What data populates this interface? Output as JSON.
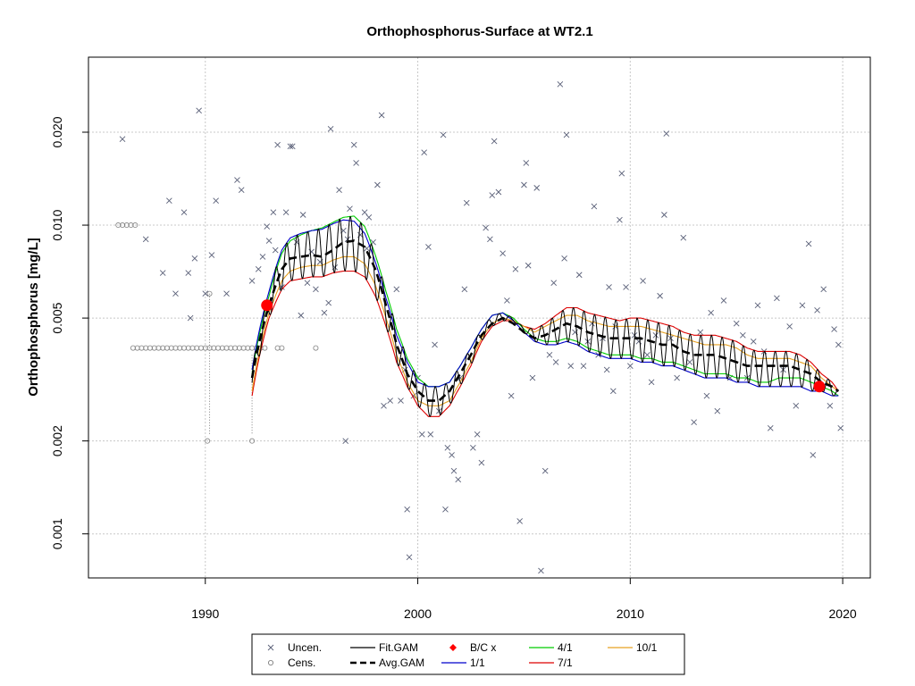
{
  "chart_data": {
    "type": "scatter",
    "title": "Orthophosphorus-Surface at WT2.1",
    "ylabel": "Orthophosphorus [mg/L]",
    "xlabel": "",
    "y_scale": "log",
    "xlim": [
      1984.5,
      2021.3
    ],
    "ylim": [
      0.00072,
      0.035
    ],
    "grid": true,
    "x_ticks": [
      "1990",
      "2000",
      "2010",
      "2020"
    ],
    "y_ticks": [
      "0.001",
      "0.002",
      "0.005",
      "0.010",
      "0.020"
    ],
    "legend": {
      "position": "bottom",
      "items": [
        {
          "label": "Uncen.",
          "kind": "x",
          "color": "#5a6078"
        },
        {
          "label": "Cens.",
          "kind": "o",
          "color": "#707070"
        },
        {
          "label": "Fit.GAM",
          "kind": "line",
          "color": "#000000"
        },
        {
          "label": "Avg.GAM",
          "kind": "dash",
          "color": "#000000"
        },
        {
          "label": "B/C x",
          "kind": "diamond",
          "color": "#ff0000"
        },
        {
          "label": "1/1",
          "kind": "line",
          "color": "#0000cc"
        },
        {
          "label": "4/1",
          "kind": "line",
          "color": "#00cc00"
        },
        {
          "label": "7/1",
          "kind": "line",
          "color": "#dd0000"
        },
        {
          "label": "10/1",
          "kind": "line",
          "color": "#e6a020"
        }
      ]
    },
    "uncensored": [
      [
        1986.1,
        0.019
      ],
      [
        1987.2,
        0.009
      ],
      [
        1988.0,
        0.007
      ],
      [
        1988.3,
        0.012
      ],
      [
        1988.6,
        0.006
      ],
      [
        1989.0,
        0.011
      ],
      [
        1989.2,
        0.007
      ],
      [
        1989.3,
        0.005
      ],
      [
        1989.5,
        0.0078
      ],
      [
        1989.7,
        0.0235
      ],
      [
        1990.0,
        0.006
      ],
      [
        1990.3,
        0.008
      ],
      [
        1990.5,
        0.012
      ],
      [
        1991.0,
        0.006
      ],
      [
        1991.5,
        0.014
      ],
      [
        1991.7,
        0.013
      ],
      [
        1992.2,
        0.0066
      ],
      [
        1992.5,
        0.0072
      ],
      [
        1992.7,
        0.0079
      ],
      [
        1992.9,
        0.0099
      ],
      [
        1993.0,
        0.0089
      ],
      [
        1993.2,
        0.011
      ],
      [
        1993.3,
        0.0083
      ],
      [
        1993.4,
        0.0182
      ],
      [
        1993.6,
        0.0063
      ],
      [
        1993.8,
        0.011
      ],
      [
        1994.0,
        0.018
      ],
      [
        1994.1,
        0.018
      ],
      [
        1994.3,
        0.0088
      ],
      [
        1994.5,
        0.0051
      ],
      [
        1994.6,
        0.0108
      ],
      [
        1994.8,
        0.0065
      ],
      [
        1995.0,
        0.0082
      ],
      [
        1995.2,
        0.0062
      ],
      [
        1995.4,
        0.0076
      ],
      [
        1995.6,
        0.0052
      ],
      [
        1995.8,
        0.0056
      ],
      [
        1995.9,
        0.0205
      ],
      [
        1996.1,
        0.0073
      ],
      [
        1996.3,
        0.013
      ],
      [
        1996.5,
        0.0096
      ],
      [
        1996.6,
        0.002
      ],
      [
        1996.7,
        0.009
      ],
      [
        1996.8,
        0.0113
      ],
      [
        1997.0,
        0.0182
      ],
      [
        1997.1,
        0.0159
      ],
      [
        1997.3,
        0.0093
      ],
      [
        1997.5,
        0.011
      ],
      [
        1997.6,
        0.0084
      ],
      [
        1997.7,
        0.0106
      ],
      [
        1997.9,
        0.0088
      ],
      [
        1998.1,
        0.0135
      ],
      [
        1998.3,
        0.0227
      ],
      [
        1998.4,
        0.0026
      ],
      [
        1998.7,
        0.0027
      ],
      [
        1999.0,
        0.0062
      ],
      [
        1999.2,
        0.0027
      ],
      [
        1999.4,
        0.0034
      ],
      [
        1999.5,
        0.0012
      ],
      [
        1999.6,
        0.00084
      ],
      [
        1999.8,
        0.0028
      ],
      [
        2000.0,
        0.0032
      ],
      [
        2000.2,
        0.0021
      ],
      [
        2000.3,
        0.0172
      ],
      [
        2000.5,
        0.0085
      ],
      [
        2000.6,
        0.0021
      ],
      [
        2000.8,
        0.0041
      ],
      [
        2001.0,
        0.0025
      ],
      [
        2001.2,
        0.0196
      ],
      [
        2001.3,
        0.0012
      ],
      [
        2001.4,
        0.0019
      ],
      [
        2001.6,
        0.0018
      ],
      [
        2001.7,
        0.0016
      ],
      [
        2001.9,
        0.0015
      ],
      [
        2002.0,
        0.0032
      ],
      [
        2002.2,
        0.0062
      ],
      [
        2002.3,
        0.0118
      ],
      [
        2002.6,
        0.0019
      ],
      [
        2002.8,
        0.0021
      ],
      [
        2003.0,
        0.0017
      ],
      [
        2003.2,
        0.0098
      ],
      [
        2003.4,
        0.009
      ],
      [
        2003.5,
        0.0125
      ],
      [
        2003.6,
        0.0187
      ],
      [
        2003.8,
        0.0128
      ],
      [
        2004.0,
        0.0081
      ],
      [
        2004.2,
        0.0057
      ],
      [
        2004.4,
        0.0028
      ],
      [
        2004.6,
        0.0072
      ],
      [
        2004.8,
        0.0011
      ],
      [
        2005.0,
        0.0135
      ],
      [
        2005.1,
        0.0159
      ],
      [
        2005.2,
        0.0074
      ],
      [
        2005.4,
        0.0032
      ],
      [
        2005.6,
        0.0132
      ],
      [
        2005.8,
        0.00076
      ],
      [
        2006.0,
        0.0016
      ],
      [
        2006.2,
        0.0038
      ],
      [
        2006.4,
        0.0065
      ],
      [
        2006.5,
        0.0036
      ],
      [
        2006.7,
        0.0286
      ],
      [
        2006.9,
        0.0078
      ],
      [
        2007.0,
        0.0196
      ],
      [
        2007.2,
        0.0035
      ],
      [
        2007.4,
        0.0045
      ],
      [
        2007.6,
        0.0069
      ],
      [
        2007.8,
        0.0035
      ],
      [
        2008.0,
        0.0042
      ],
      [
        2008.2,
        0.0048
      ],
      [
        2008.3,
        0.0115
      ],
      [
        2008.5,
        0.0038
      ],
      [
        2008.7,
        0.0043
      ],
      [
        2008.9,
        0.0034
      ],
      [
        2009.0,
        0.0063
      ],
      [
        2009.2,
        0.0029
      ],
      [
        2009.3,
        0.0047
      ],
      [
        2009.5,
        0.0104
      ],
      [
        2009.6,
        0.0147
      ],
      [
        2009.8,
        0.0063
      ],
      [
        2010.0,
        0.0035
      ],
      [
        2010.2,
        0.0044
      ],
      [
        2010.4,
        0.0042
      ],
      [
        2010.6,
        0.0066
      ],
      [
        2010.8,
        0.0038
      ],
      [
        2011.0,
        0.0031
      ],
      [
        2011.2,
        0.0044
      ],
      [
        2011.4,
        0.0059
      ],
      [
        2011.6,
        0.0108
      ],
      [
        2011.7,
        0.0198
      ],
      [
        2011.9,
        0.0043
      ],
      [
        2012.2,
        0.0032
      ],
      [
        2012.5,
        0.0091
      ],
      [
        2012.8,
        0.0036
      ],
      [
        2013.0,
        0.0023
      ],
      [
        2013.3,
        0.0045
      ],
      [
        2013.6,
        0.0028
      ],
      [
        2013.8,
        0.0052
      ],
      [
        2014.1,
        0.0025
      ],
      [
        2014.4,
        0.0057
      ],
      [
        2014.7,
        0.0032
      ],
      [
        2015.0,
        0.0048
      ],
      [
        2015.3,
        0.0044
      ],
      [
        2015.5,
        0.0032
      ],
      [
        2015.8,
        0.0042
      ],
      [
        2016.0,
        0.0055
      ],
      [
        2016.3,
        0.0039
      ],
      [
        2016.6,
        0.0022
      ],
      [
        2016.9,
        0.0058
      ],
      [
        2017.2,
        0.0034
      ],
      [
        2017.5,
        0.0047
      ],
      [
        2017.8,
        0.0026
      ],
      [
        2018.1,
        0.0055
      ],
      [
        2018.4,
        0.0087
      ],
      [
        2018.6,
        0.0018
      ],
      [
        2018.8,
        0.0053
      ],
      [
        2019.1,
        0.0062
      ],
      [
        2019.4,
        0.0026
      ],
      [
        2019.6,
        0.0046
      ],
      [
        2019.8,
        0.0041
      ],
      [
        2019.9,
        0.0022
      ]
    ],
    "censored": [
      [
        1985.9,
        0.01
      ],
      [
        1986.1,
        0.01
      ],
      [
        1986.3,
        0.01
      ],
      [
        1986.5,
        0.01
      ],
      [
        1986.7,
        0.01
      ],
      [
        1986.6,
        0.004
      ],
      [
        1986.8,
        0.004
      ],
      [
        1987.0,
        0.004
      ],
      [
        1987.2,
        0.004
      ],
      [
        1987.4,
        0.004
      ],
      [
        1987.6,
        0.004
      ],
      [
        1987.8,
        0.004
      ],
      [
        1988.0,
        0.004
      ],
      [
        1988.2,
        0.004
      ],
      [
        1988.4,
        0.004
      ],
      [
        1988.6,
        0.004
      ],
      [
        1988.8,
        0.004
      ],
      [
        1989.0,
        0.004
      ],
      [
        1989.2,
        0.004
      ],
      [
        1989.4,
        0.004
      ],
      [
        1989.6,
        0.004
      ],
      [
        1989.8,
        0.004
      ],
      [
        1990.0,
        0.004
      ],
      [
        1990.2,
        0.004
      ],
      [
        1990.4,
        0.004
      ],
      [
        1990.6,
        0.004
      ],
      [
        1990.8,
        0.004
      ],
      [
        1991.0,
        0.004
      ],
      [
        1991.2,
        0.004
      ],
      [
        1991.4,
        0.004
      ],
      [
        1991.6,
        0.004
      ],
      [
        1991.8,
        0.004
      ],
      [
        1992.0,
        0.004
      ],
      [
        1992.2,
        0.004
      ],
      [
        1992.4,
        0.004
      ],
      [
        1992.6,
        0.004
      ],
      [
        1992.8,
        0.004
      ],
      [
        1993.4,
        0.004
      ],
      [
        1993.6,
        0.004
      ],
      [
        1995.2,
        0.004
      ],
      [
        1990.2,
        0.006
      ],
      [
        1990.1,
        0.002
      ],
      [
        1992.2,
        0.002
      ]
    ],
    "censored_segments": [
      [
        1990.2,
        0.006,
        1990.2,
        0.0021
      ],
      [
        1992.2,
        0.0038,
        1992.2,
        0.0021
      ]
    ],
    "fit_gam": {
      "x": [
        1992.2,
        1993.0,
        1993.6,
        1994.0,
        1994.5,
        1995.0,
        1995.5,
        1996.0,
        1996.5,
        1997.0,
        1997.5,
        1998.0,
        1998.5,
        1999.0,
        1999.5,
        2000.0,
        2000.5,
        2001.0,
        2001.5,
        2002.0,
        2002.5,
        2003.0,
        2003.5,
        2004.0,
        2004.5,
        2005.0,
        2005.5,
        2006.0,
        2006.5,
        2007.0,
        2007.5,
        2008.0,
        2008.5,
        2009.0,
        2009.5,
        2010.0,
        2010.5,
        2011.0,
        2011.5,
        2012.0,
        2012.5,
        2013.0,
        2013.5,
        2014.0,
        2014.5,
        2015.0,
        2015.5,
        2016.0,
        2016.5,
        2017.0,
        2017.5,
        2018.0,
        2018.5,
        2019.0,
        2019.5,
        2019.8
      ],
      "avg": [
        0.0032,
        0.0055,
        0.0072,
        0.0078,
        0.0079,
        0.008,
        0.0079,
        0.0083,
        0.0088,
        0.0089,
        0.0085,
        0.0072,
        0.0055,
        0.0041,
        0.0033,
        0.0029,
        0.0027,
        0.0027,
        0.0029,
        0.0033,
        0.0038,
        0.0044,
        0.0048,
        0.005,
        0.0048,
        0.0045,
        0.0043,
        0.0044,
        0.0046,
        0.0048,
        0.0047,
        0.0045,
        0.0044,
        0.0043,
        0.0043,
        0.0043,
        0.0043,
        0.0042,
        0.0041,
        0.0041,
        0.0039,
        0.0038,
        0.0038,
        0.0038,
        0.0037,
        0.0036,
        0.0035,
        0.0035,
        0.0035,
        0.0035,
        0.0035,
        0.0034,
        0.0033,
        0.0031,
        0.003,
        0.0029
      ],
      "r11": [
        0.0034,
        0.0061,
        0.0083,
        0.0091,
        0.0094,
        0.0096,
        0.0097,
        0.0101,
        0.0104,
        0.0103,
        0.0094,
        0.0076,
        0.0058,
        0.0044,
        0.0036,
        0.0031,
        0.003,
        0.003,
        0.0031,
        0.0035,
        0.004,
        0.0046,
        0.0051,
        0.0052,
        0.0049,
        0.0045,
        0.0042,
        0.0041,
        0.0041,
        0.0042,
        0.0041,
        0.0039,
        0.0038,
        0.0037,
        0.0037,
        0.0037,
        0.0036,
        0.0036,
        0.0035,
        0.0035,
        0.0034,
        0.0033,
        0.0032,
        0.0032,
        0.0032,
        0.0031,
        0.0031,
        0.003,
        0.003,
        0.003,
        0.003,
        0.003,
        0.0029,
        0.0029,
        0.0028,
        0.0028
      ],
      "r41": [
        0.0033,
        0.0059,
        0.0081,
        0.0089,
        0.0093,
        0.0096,
        0.0098,
        0.0102,
        0.0106,
        0.0107,
        0.0099,
        0.008,
        0.0061,
        0.0046,
        0.0037,
        0.0032,
        0.003,
        0.003,
        0.0031,
        0.0035,
        0.004,
        0.0046,
        0.0051,
        0.0052,
        0.005,
        0.0046,
        0.0043,
        0.0042,
        0.0042,
        0.0043,
        0.0042,
        0.004,
        0.0039,
        0.0038,
        0.0038,
        0.0038,
        0.0037,
        0.0037,
        0.0036,
        0.0036,
        0.0035,
        0.0034,
        0.0033,
        0.0033,
        0.0033,
        0.0032,
        0.0032,
        0.0031,
        0.0031,
        0.0032,
        0.0032,
        0.0032,
        0.0031,
        0.003,
        0.0029,
        0.0028
      ],
      "r71": [
        0.0028,
        0.005,
        0.0062,
        0.0066,
        0.0067,
        0.0068,
        0.0068,
        0.007,
        0.0071,
        0.0071,
        0.0068,
        0.0059,
        0.0047,
        0.0036,
        0.003,
        0.0026,
        0.0024,
        0.0024,
        0.0026,
        0.003,
        0.0035,
        0.0042,
        0.0047,
        0.0049,
        0.0049,
        0.0047,
        0.0046,
        0.0048,
        0.0051,
        0.0054,
        0.0054,
        0.0052,
        0.0051,
        0.005,
        0.0049,
        0.005,
        0.005,
        0.0049,
        0.0048,
        0.0047,
        0.0045,
        0.0044,
        0.0044,
        0.0044,
        0.0043,
        0.0042,
        0.004,
        0.0039,
        0.0039,
        0.0039,
        0.0039,
        0.0038,
        0.0036,
        0.0033,
        0.0031,
        0.0029
      ],
      "r101": [
        0.0029,
        0.0052,
        0.0066,
        0.0071,
        0.0073,
        0.0074,
        0.0074,
        0.0077,
        0.0079,
        0.0079,
        0.0075,
        0.0064,
        0.005,
        0.0038,
        0.0031,
        0.0027,
        0.0026,
        0.0026,
        0.0027,
        0.0031,
        0.0036,
        0.0043,
        0.0048,
        0.005,
        0.0049,
        0.0047,
        0.0045,
        0.0047,
        0.0049,
        0.0051,
        0.0051,
        0.0049,
        0.0048,
        0.0047,
        0.0047,
        0.0047,
        0.0047,
        0.0046,
        0.0045,
        0.0044,
        0.0043,
        0.0042,
        0.0041,
        0.0041,
        0.0041,
        0.004,
        0.0038,
        0.0037,
        0.0037,
        0.0037,
        0.0037,
        0.0036,
        0.0035,
        0.0032,
        0.003,
        0.0029
      ],
      "oscillation_period_years": 0.5
    },
    "bc_points": [
      [
        1992.9,
        0.0055
      ],
      [
        2018.9,
        0.003
      ]
    ]
  }
}
